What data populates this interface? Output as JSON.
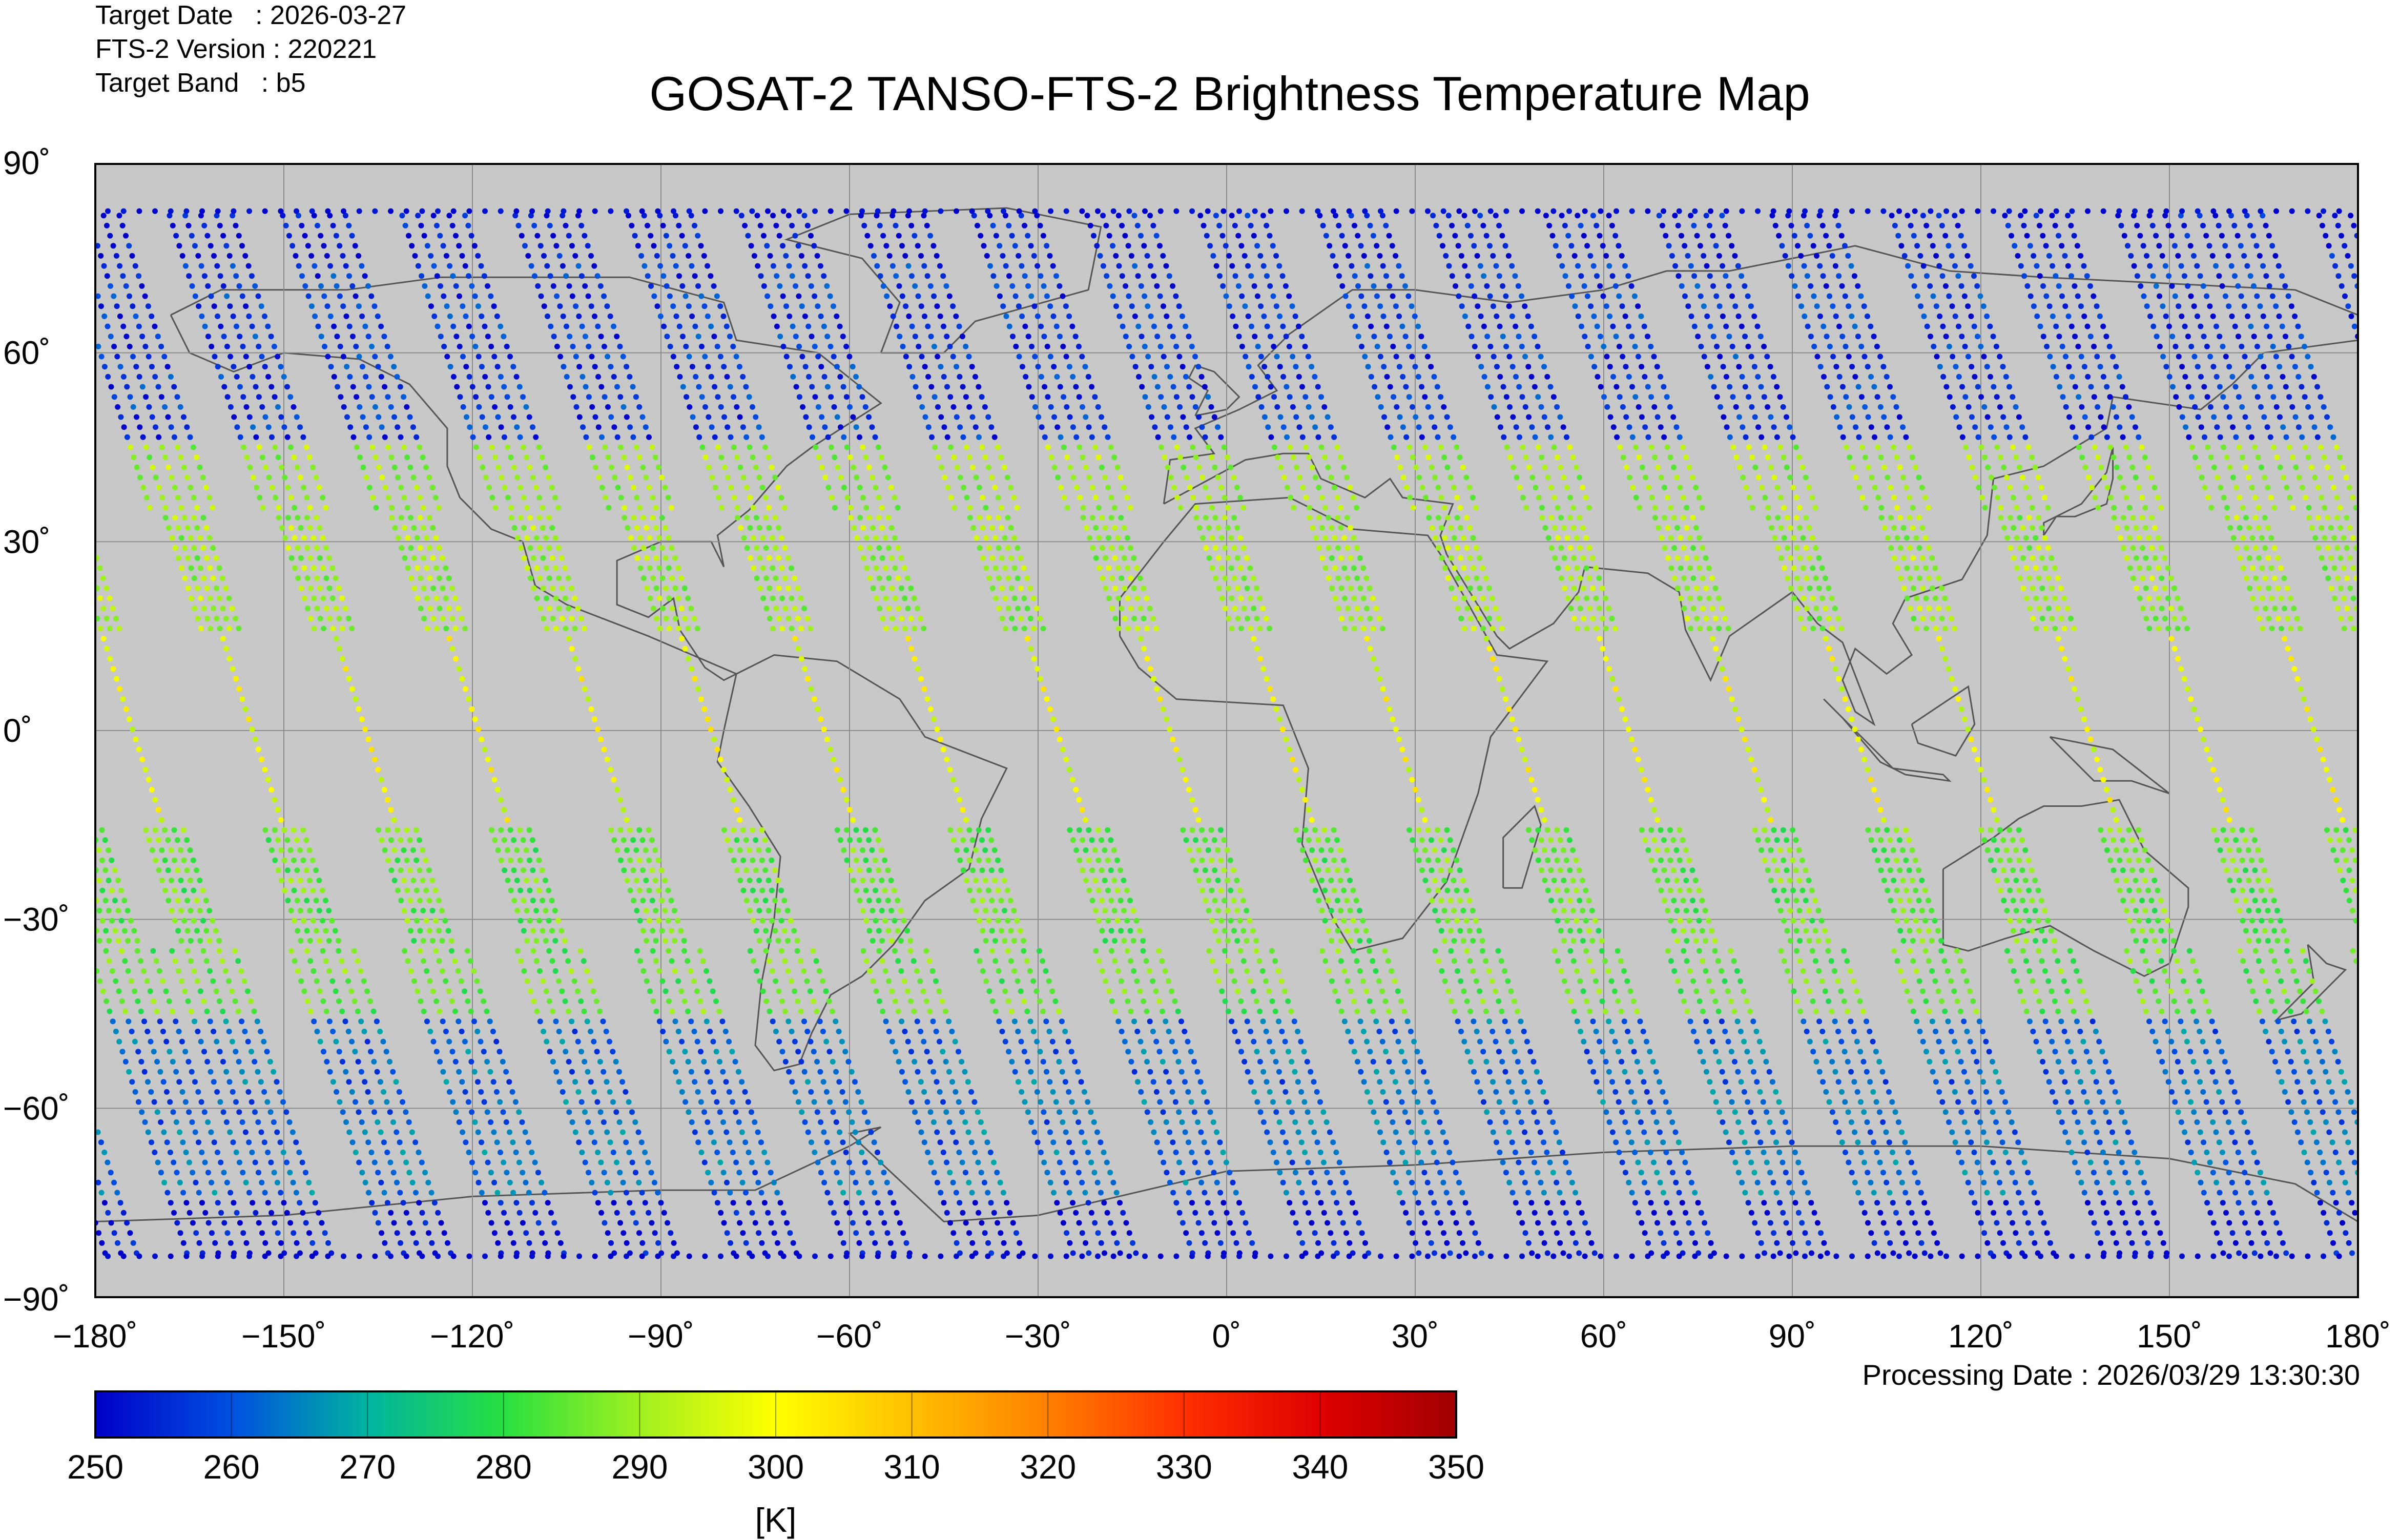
{
  "header": {
    "target_date": "Target Date   : 2026-03-27",
    "version": "FTS-2 Version : 220221",
    "band": "Target Band   : b5"
  },
  "title": "GOSAT-2 TANSO-FTS-2 Brightness Temperature Map",
  "processing_date": "Processing Date : 2026/03/29 13:30:30",
  "colors": {
    "land_ocean_background": "#c8c8c8",
    "coastline": "#555555",
    "grid": "#8c8c8c",
    "colormap": [
      "#0000c8",
      "#0050e0",
      "#00b4a0",
      "#28e040",
      "#a0f020",
      "#ffff00",
      "#ffc000",
      "#ff8000",
      "#ff3000",
      "#e00000",
      "#a00000"
    ]
  },
  "map": {
    "projection": "equirectangular",
    "lon_range": [
      -180,
      180
    ],
    "lat_range": [
      -90,
      90
    ],
    "lon_ticks": [
      "−180˚",
      "−150˚",
      "−120˚",
      "−90˚",
      "−60˚",
      "−30˚",
      "0˚",
      "30˚",
      "60˚",
      "90˚",
      "120˚",
      "150˚",
      "180˚"
    ],
    "lat_ticks": [
      "90˚",
      "60˚",
      "30˚",
      "0˚",
      "−30˚",
      "−60˚",
      "−90˚"
    ],
    "grid": true
  },
  "colorbar": {
    "range": [
      250,
      350
    ],
    "ticks": [
      "250",
      "260",
      "270",
      "280",
      "290",
      "300",
      "310",
      "320",
      "330",
      "340",
      "350"
    ],
    "unit": "[K]"
  },
  "swaths": {
    "description_lon_at_equator": [
      -174,
      -155,
      -137,
      -119,
      -100,
      -82,
      -64,
      -46,
      -27,
      -9,
      9,
      27,
      46,
      64,
      82,
      100,
      118,
      137,
      155,
      173
    ],
    "temperature_K_by_latitude_band": {
      "north_polar_75_90": 252,
      "north_mid_45_75": 256,
      "north_sub_15_45": 290,
      "tropics_-15_15": 298,
      "south_mid_-45_-15": 285,
      "south_high_-75_-45": 262,
      "south_polar_-90_-75": 251
    }
  }
}
